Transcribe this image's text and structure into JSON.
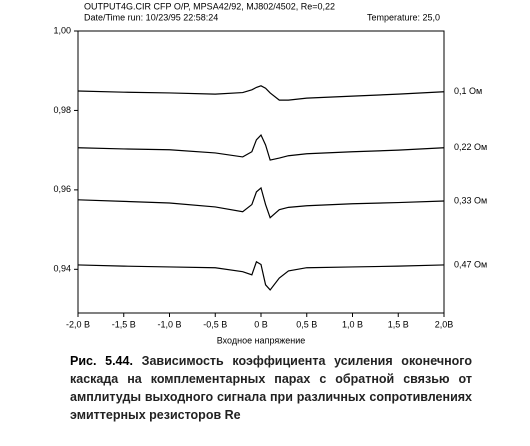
{
  "chart_data": {
    "type": "line",
    "header": [
      "OUTPUT4G.CIR  CFP O/P, MPSA42/92, MJ802/4502, Re=0,22",
      "Date/Time run: 10/23/95  22:58:24"
    ],
    "temperature": "Temperature: 25,0",
    "x_label": "Входное напряжение",
    "x": [
      -2,
      -1.5,
      -1,
      -0.5,
      -0.2,
      -0.1,
      -0.05,
      0,
      0.05,
      0.1,
      0.2,
      0.3,
      0.5,
      1,
      1.5,
      2
    ],
    "series": [
      {
        "name": "0,1 Ом",
        "color": "#000000",
        "values": [
          0.9849,
          0.9846,
          0.9844,
          0.9841,
          0.9845,
          0.9852,
          0.9858,
          0.9862,
          0.9856,
          0.9844,
          0.9826,
          0.9826,
          0.9831,
          0.9836,
          0.9841,
          0.9847
        ]
      },
      {
        "name": "0,22 Ом",
        "color": "#000000",
        "values": [
          0.9706,
          0.9703,
          0.9701,
          0.9693,
          0.9683,
          0.9696,
          0.9726,
          0.9738,
          0.9713,
          0.9675,
          0.968,
          0.9686,
          0.9691,
          0.9696,
          0.97,
          0.9706
        ]
      },
      {
        "name": "0,33 Ом",
        "color": "#000000",
        "values": [
          0.9575,
          0.9571,
          0.9567,
          0.9557,
          0.9545,
          0.9563,
          0.9595,
          0.9605,
          0.9563,
          0.953,
          0.955,
          0.9556,
          0.956,
          0.9565,
          0.9568,
          0.9572
        ]
      },
      {
        "name": "0,47 Ом",
        "color": "#000000",
        "values": [
          0.9411,
          0.9408,
          0.9406,
          0.9404,
          0.9394,
          0.9386,
          0.9419,
          0.9412,
          0.9361,
          0.9348,
          0.9378,
          0.9396,
          0.9404,
          0.9406,
          0.9408,
          0.9411
        ]
      }
    ],
    "xlim": [
      -2,
      2
    ],
    "ylim": [
      0.929,
      1.0
    ],
    "xticks": [
      {
        "value": -2,
        "label": "-2,0 В"
      },
      {
        "value": -1.5,
        "label": "-1,5 В"
      },
      {
        "value": -1,
        "label": "-1,0 В"
      },
      {
        "value": -0.5,
        "label": "-0,5 В"
      },
      {
        "value": 0,
        "label": "0 В"
      },
      {
        "value": 0.5,
        "label": "0,5 В"
      },
      {
        "value": 1,
        "label": "1,0 В"
      },
      {
        "value": 1.5,
        "label": "1,5 В"
      },
      {
        "value": 2,
        "label": "2,0В"
      }
    ],
    "yticks": [
      {
        "value": 1.0,
        "label": "1,00"
      },
      {
        "value": 0.98,
        "label": "0,98"
      },
      {
        "value": 0.96,
        "label": "0,96"
      },
      {
        "value": 0.94,
        "label": "0,94"
      }
    ],
    "caption_label": "Рис. 5.44.",
    "caption": "Зависимость коэффициента усиления оконечного каскада на комплементарных парах с обратной связью от амплитуды выходного сигнала при различных сопротивлениях эмиттерных резисторов Re"
  }
}
